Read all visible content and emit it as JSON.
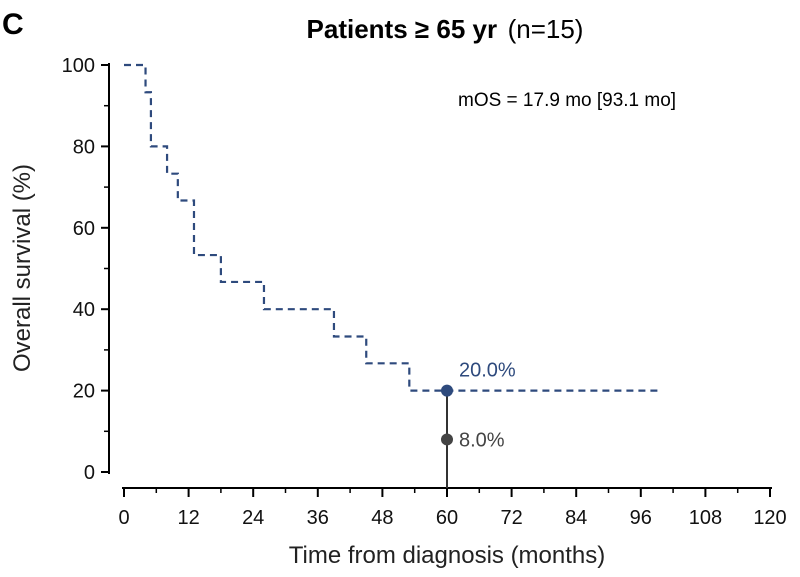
{
  "panel_label": "C",
  "chart_data": {
    "type": "line",
    "title_bold": "Patients ≥ 65 yr",
    "title_normal": "(n=15)",
    "xlabel": "Time from diagnosis (months)",
    "ylabel": "Overall survival (%)",
    "xlim": [
      0,
      120
    ],
    "ylim": [
      0,
      100
    ],
    "x_ticks": [
      "0",
      "12",
      "24",
      "36",
      "48",
      "60",
      "72",
      "84",
      "96",
      "108",
      "120"
    ],
    "y_ticks": [
      "0",
      "20",
      "40",
      "60",
      "80",
      "100"
    ],
    "annotation": "mOS = 17.9 mo [93.1 mo]",
    "series": [
      {
        "color": "#2e4a7d",
        "style": "dashed-step",
        "x": [
          0,
          4,
          5,
          8,
          10,
          13,
          14.5,
          18,
          26,
          39,
          45,
          53,
          60,
          93,
          100
        ],
        "y": [
          100,
          93.3,
          80,
          73.3,
          66.7,
          53.3,
          53.3,
          46.7,
          40,
          33.3,
          26.7,
          20,
          20,
          20,
          20
        ]
      }
    ],
    "points": [
      {
        "x": 60,
        "y": 20.0,
        "label": "20.0%",
        "color": "#2e4a7d"
      },
      {
        "x": 60,
        "y": 8.0,
        "label": "8.0%",
        "color": "#444444"
      }
    ],
    "vline_x": 60,
    "grid": false
  }
}
